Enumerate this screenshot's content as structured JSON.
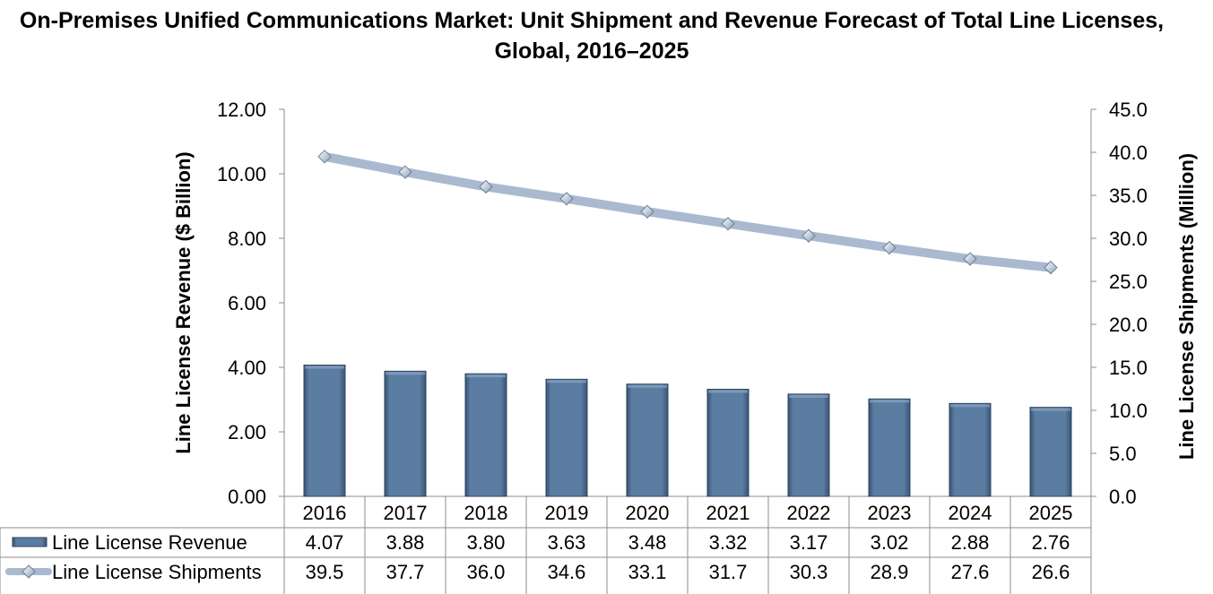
{
  "chart_data": {
    "type": "bar",
    "title": "On-Premises Unified Communications Market: Unit Shipment and Revenue Forecast of Total Line Licenses, Global, 2016–2025",
    "categories": [
      "2016",
      "2017",
      "2018",
      "2019",
      "2020",
      "2021",
      "2022",
      "2023",
      "2024",
      "2025"
    ],
    "ylabel": "Line License Revenue ($ Billion)",
    "y2label": "Line License Shipments (Million)",
    "ylim": [
      0,
      12
    ],
    "y2lim": [
      0,
      45
    ],
    "yticks": [
      "0.00",
      "2.00",
      "4.00",
      "6.00",
      "8.00",
      "10.00",
      "12.00"
    ],
    "y2ticks": [
      "0.0",
      "5.0",
      "10.0",
      "15.0",
      "20.0",
      "25.0",
      "30.0",
      "35.0",
      "40.0",
      "45.0"
    ],
    "series": [
      {
        "name": "Line License Revenue",
        "type": "bar",
        "axis": "left",
        "values": [
          4.07,
          3.88,
          3.8,
          3.63,
          3.48,
          3.32,
          3.17,
          3.02,
          2.88,
          2.76
        ],
        "labels": [
          "4.07",
          "3.88",
          "3.80",
          "3.63",
          "3.48",
          "3.32",
          "3.17",
          "3.02",
          "2.88",
          "2.76"
        ],
        "color": "#587a9f"
      },
      {
        "name": "Line License Shipments",
        "type": "line",
        "axis": "right",
        "values": [
          39.5,
          37.7,
          36.0,
          34.6,
          33.1,
          31.7,
          30.3,
          28.9,
          27.6,
          26.6
        ],
        "labels": [
          "39.5",
          "37.7",
          "36.0",
          "34.6",
          "33.1",
          "31.7",
          "30.3",
          "28.9",
          "27.6",
          "26.6"
        ],
        "color": "#a9b9cf"
      }
    ],
    "legend_position": "bottom-data-table",
    "grid": false
  }
}
